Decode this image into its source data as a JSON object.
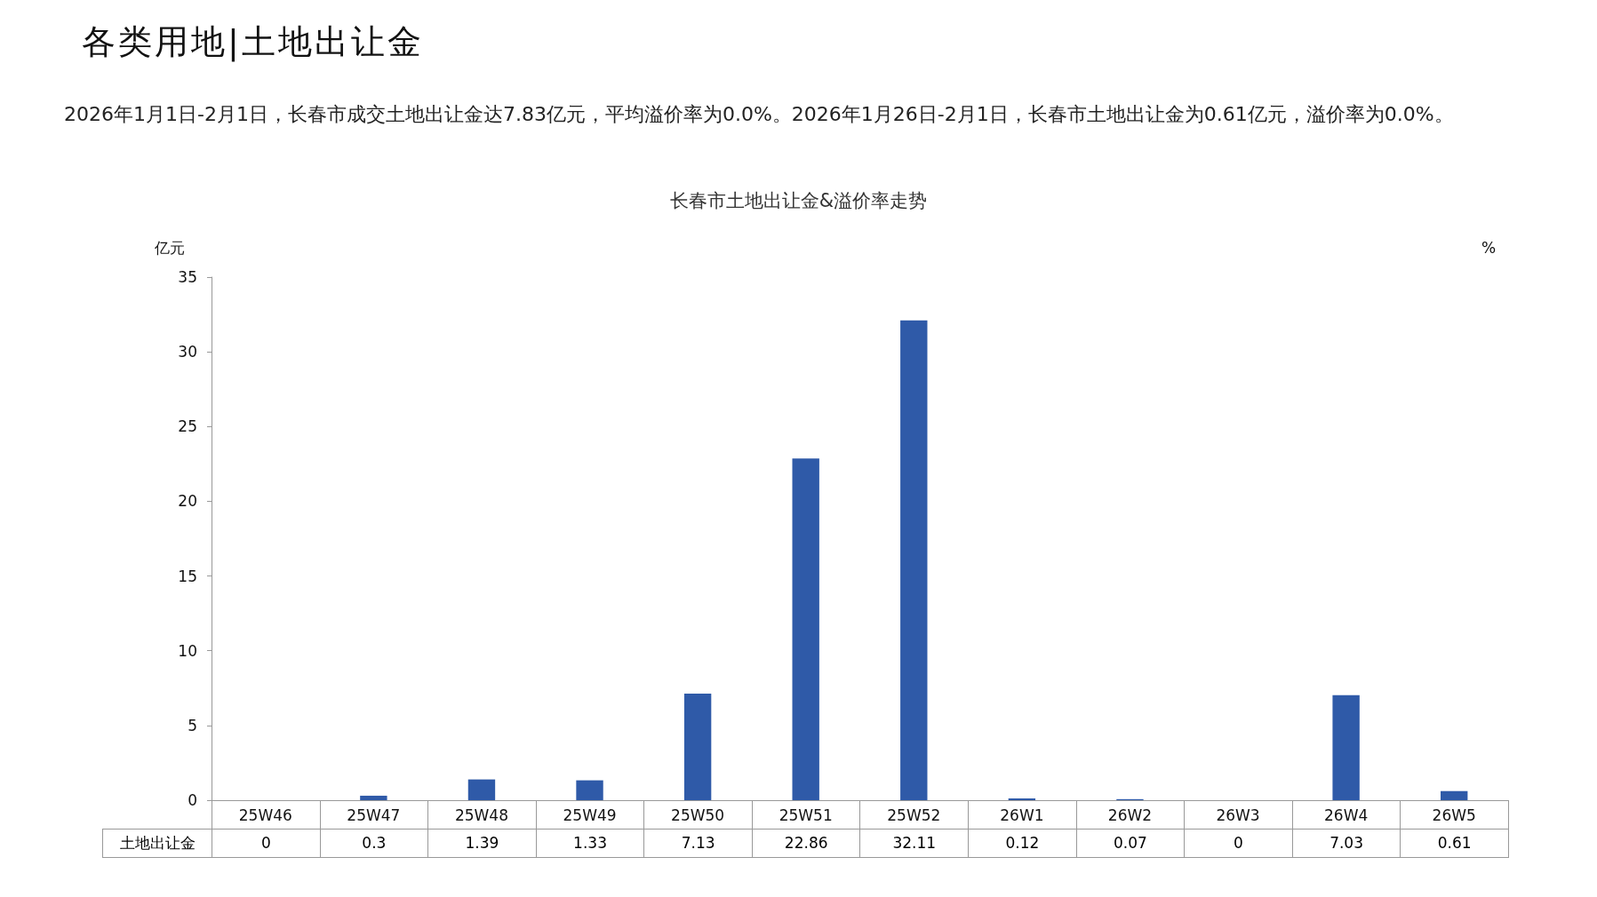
{
  "chart_data": {
    "type": "bar",
    "title": "长春市土地出让金&溢价率走势",
    "subtitle": "2026年1月1日-2月1日，长春市成交土地出让金达7.83亿元，平均溢价率为0.0%。2026年1月26日-2月1日，长春市土地出让金为0.61亿元，溢价率为0.0%。",
    "annotations": [
      "各类用地|土地出让金"
    ],
    "ylabel": "亿元",
    "y2label": "%",
    "categories": [
      "25W46",
      "25W47",
      "25W48",
      "25W49",
      "25W50",
      "25W51",
      "25W52",
      "26W1",
      "26W2",
      "26W3",
      "26W4",
      "26W5"
    ],
    "series": [
      {
        "name": "土地出让金",
        "color": "#2f5aa8",
        "values": [
          0,
          0.3,
          1.39,
          1.33,
          7.13,
          22.86,
          32.11,
          0.12,
          0.07,
          0,
          7.03,
          0.61
        ]
      }
    ],
    "ylim": [
      0,
      35
    ],
    "yticks": [
      0,
      5,
      10,
      15,
      20,
      25,
      30,
      35
    ],
    "grid": false,
    "legend": false,
    "data_labels": true
  }
}
